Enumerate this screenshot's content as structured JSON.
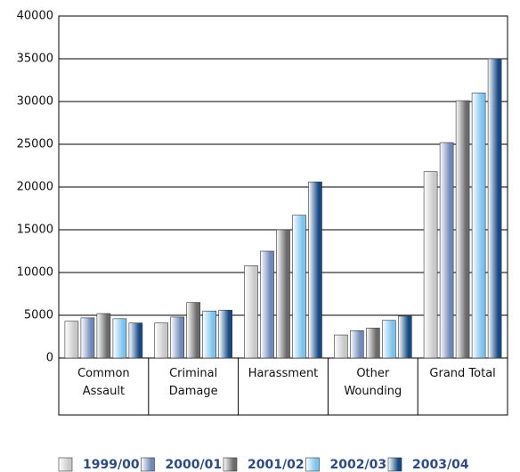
{
  "chart_data": {
    "type": "bar",
    "categories": [
      "Common\nAssault",
      "Criminal\nDamage",
      "Harassment",
      "Other\nWounding",
      "Grand Total"
    ],
    "series": [
      {
        "name": "1999/00",
        "color": "#c8c8c8",
        "values": [
          4300,
          4100,
          10800,
          2700,
          21800
        ]
      },
      {
        "name": "2000/01",
        "color": "#7088b8",
        "values": [
          4700,
          4800,
          12500,
          3200,
          25200
        ]
      },
      {
        "name": "2001/02",
        "color": "#6a6a6a",
        "values": [
          5200,
          6500,
          15000,
          3500,
          30100
        ]
      },
      {
        "name": "2002/03",
        "color": "#7cc4ee",
        "values": [
          4600,
          5500,
          16700,
          4400,
          31000
        ]
      },
      {
        "name": "2003/04",
        "color": "#154a86",
        "values": [
          4100,
          5600,
          20600,
          4900,
          35000
        ]
      }
    ],
    "ylim": [
      0,
      40000
    ],
    "yticks": [
      0,
      5000,
      10000,
      15000,
      20000,
      25000,
      30000,
      35000,
      40000
    ],
    "grid": true
  }
}
